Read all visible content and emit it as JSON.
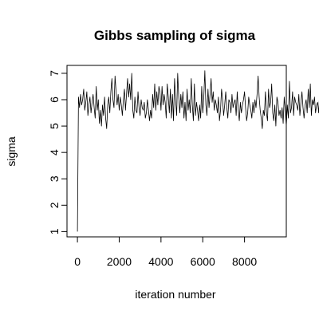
{
  "chart_data": {
    "type": "line",
    "title": "Gibbs sampling of sigma",
    "xlabel": "iteration number",
    "ylabel": "sigma",
    "xlim": [
      -500,
      10000
    ],
    "ylim": [
      0.8,
      7.3
    ],
    "xticks": [
      0,
      2000,
      4000,
      6000,
      8000
    ],
    "yticks": [
      1,
      2,
      3,
      4,
      5,
      6,
      7
    ],
    "grid": false,
    "legend": "none",
    "series": [
      {
        "x_start": 0,
        "x_step": 50,
        "values": [
          1.0,
          6.1,
          5.7,
          6.2,
          5.8,
          6.0,
          6.4,
          5.6,
          5.9,
          6.3,
          5.4,
          5.8,
          6.1,
          5.5,
          5.9,
          6.2,
          5.7,
          5.3,
          6.5,
          5.6,
          6.0,
          5.1,
          5.6,
          5.0,
          5.8,
          5.4,
          6.1,
          5.3,
          4.9,
          5.8,
          6.1,
          5.5,
          6.3,
          6.8,
          6.0,
          5.7,
          6.9,
          6.3,
          5.8,
          6.2,
          5.6,
          6.1,
          5.8,
          5.4,
          6.0,
          6.4,
          5.6,
          6.2,
          6.8,
          6.1,
          6.6,
          6.0,
          7.0,
          5.6,
          5.3,
          6.1,
          5.6,
          5.5,
          6.3,
          5.7,
          5.4,
          6.0,
          5.7,
          5.6,
          5.9,
          5.3,
          5.5,
          6.0,
          5.6,
          5.2,
          5.6,
          5.3,
          6.2,
          5.7,
          6.6,
          5.6,
          6.3,
          5.8,
          6.5,
          6.3,
          5.6,
          6.5,
          5.8,
          6.2,
          5.9,
          5.3,
          6.6,
          6.1,
          5.5,
          6.4,
          5.3,
          6.2,
          5.2,
          6.8,
          6.0,
          5.4,
          7.0,
          6.1,
          5.5,
          6.2,
          5.7,
          6.3,
          5.3,
          5.9,
          5.2,
          6.4,
          5.6,
          6.0,
          5.5,
          6.8,
          5.8,
          5.2,
          6.6,
          5.4,
          5.9,
          5.6,
          5.2,
          5.8,
          5.3,
          6.5,
          5.5,
          6.1,
          7.1,
          5.8,
          5.4,
          6.4,
          5.7,
          6.2,
          6.8,
          5.9,
          6.3,
          5.6,
          6.0,
          5.8,
          5.5,
          6.1,
          5.2,
          5.6,
          6.4,
          6.0,
          5.4,
          5.8,
          6.3,
          5.7,
          5.3,
          6.0,
          5.9,
          5.5,
          6.2,
          5.7,
          5.9,
          6.0,
          5.4,
          6.3,
          5.6,
          5.2,
          5.9,
          5.5,
          5.8,
          6.0,
          6.3,
          5.7,
          5.2,
          5.5,
          6.1,
          5.8,
          5.6,
          5.3,
          5.9,
          5.5,
          6.0,
          5.7,
          6.2,
          6.9,
          6.1,
          5.6,
          5.3,
          4.9,
          5.6,
          5.4,
          6.3,
          5.5,
          5.2,
          6.4,
          5.7,
          5.9,
          6.6,
          5.5,
          5.2,
          5.8,
          5.0,
          6.1,
          5.9,
          5.4,
          5.6,
          5.3,
          5.7,
          5.1,
          6.1,
          5.6,
          5.0,
          5.8,
          5.3,
          6.7,
          5.5,
          5.7,
          6.3,
          5.4,
          6.1,
          5.9,
          5.8,
          5.6,
          6.2,
          5.4,
          5.9,
          6.3,
          5.7,
          5.3,
          5.8,
          6.0,
          5.5,
          6.4,
          5.7,
          6.6,
          5.4,
          6.0,
          5.8,
          6.1,
          5.5,
          5.8,
          5.9,
          5.5,
          6.3,
          5.6,
          6.1,
          5.3,
          5.7,
          6.0,
          5.4,
          6.2,
          5.6,
          5.4,
          5.9,
          5.8,
          6.5,
          5.4,
          5.9,
          6.1,
          5.6,
          6.3,
          5.5,
          5.8,
          6.0,
          5.4,
          6.4,
          5.9,
          5.6,
          6.1,
          5.4,
          6.1,
          5.6,
          5.5,
          6.2,
          5.8,
          6.7,
          5.6,
          5.4,
          6.1,
          5.5,
          6.0,
          5.5,
          5.3,
          6.2,
          5.6,
          5.2,
          5.9,
          6.4,
          5.5,
          6.1,
          5.7,
          5.9,
          5.3,
          5.6,
          6.0,
          5.8,
          5.5,
          6.6,
          5.7,
          5.4,
          5.8,
          6.3,
          5.6,
          5.9,
          6.2,
          5.5,
          5.7,
          6.1,
          5.8,
          5.5,
          5.9,
          6.1,
          5.6,
          5.9,
          5.5,
          5.9,
          6.1,
          5.6,
          5.8,
          6.1,
          5.4,
          6.0,
          5.8,
          5.6,
          5.5,
          6.3,
          5.9,
          5.4,
          6.0,
          5.7,
          5.3,
          6.1,
          5.8,
          6.3,
          5.5,
          5.9,
          6.2,
          5.6,
          5.4,
          6.0,
          5.9,
          5.5,
          5.7,
          6.1,
          5.8,
          5.5,
          6.0,
          5.7,
          6.0,
          6.5,
          5.6,
          5.3,
          6.0,
          5.8,
          5.5,
          5.9,
          6.2,
          5.7,
          5.6,
          5.9,
          6.1,
          5.5,
          5.8,
          6.3,
          5.4,
          5.8,
          6.0,
          5.6,
          5.9,
          6.2,
          5.5,
          5.7,
          6.1,
          5.8,
          5.4,
          6.0,
          5.7,
          5.5,
          6.2,
          5.8,
          5.6,
          6.1,
          5.4,
          5.9,
          6.0,
          5.6,
          5.8,
          6.3,
          5.5,
          5.7,
          6.0,
          5.8,
          5.6,
          6.1,
          5.5,
          5.9,
          6.0,
          6.7,
          6.9,
          6.4,
          5.8,
          5.2
        ]
      }
    ]
  }
}
